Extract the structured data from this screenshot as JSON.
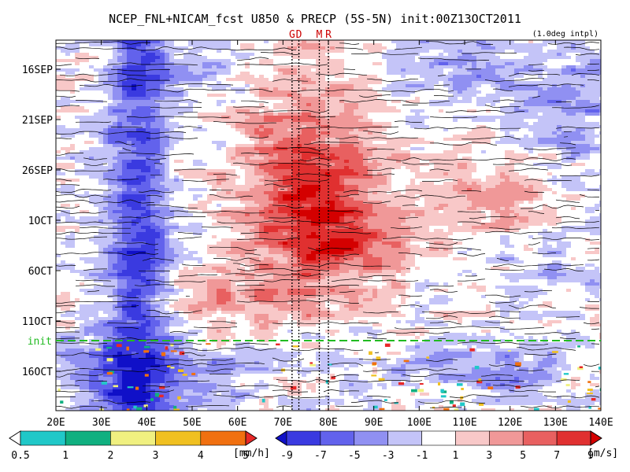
{
  "chart_data": {
    "type": "heatmap",
    "title": "NCEP_FNL+NICAM_fcst U850 & PRECP (5S-5N) init:00Z13OCT2011",
    "subtitle": "(1.0deg intpl)",
    "x_ticks": [
      "20E",
      "30E",
      "40E",
      "50E",
      "60E",
      "70E",
      "80E",
      "90E",
      "100E",
      "110E",
      "120E",
      "130E",
      "140E"
    ],
    "x_range": [
      20,
      140
    ],
    "y_ticks": [
      "16SEP",
      "21SEP",
      "26SEP",
      "1OCT",
      "6OCT",
      "11OCT",
      "16OCT"
    ],
    "init_label": "init",
    "init_date": "13OCT",
    "markers": [
      {
        "label": "G",
        "lon": 72
      },
      {
        "label": "D",
        "lon": 73.5
      },
      {
        "label": "M",
        "lon": 78
      },
      {
        "label": "R",
        "lon": 80
      }
    ],
    "wind_colorbar": {
      "unit": "[m/s]",
      "labels": [
        "-9",
        "-7",
        "-5",
        "-3",
        "-1",
        "1",
        "3",
        "5",
        "7",
        "9"
      ],
      "colors": [
        "#1010c8",
        "#3a3ae0",
        "#6262ec",
        "#9090f2",
        "#c4c4f8",
        "#ffffff",
        "#f8c8c8",
        "#f09898",
        "#e86060",
        "#e03030",
        "#d40000"
      ]
    },
    "precip_colorbar": {
      "unit": "[mm/h]",
      "labels": [
        "0.5",
        "1",
        "2",
        "3",
        "4",
        "5"
      ],
      "colors": [
        "#ffffff",
        "#20c8c8",
        "#10b080",
        "#f0f080",
        "#f0c020",
        "#f07010",
        "#e82828"
      ]
    }
  }
}
